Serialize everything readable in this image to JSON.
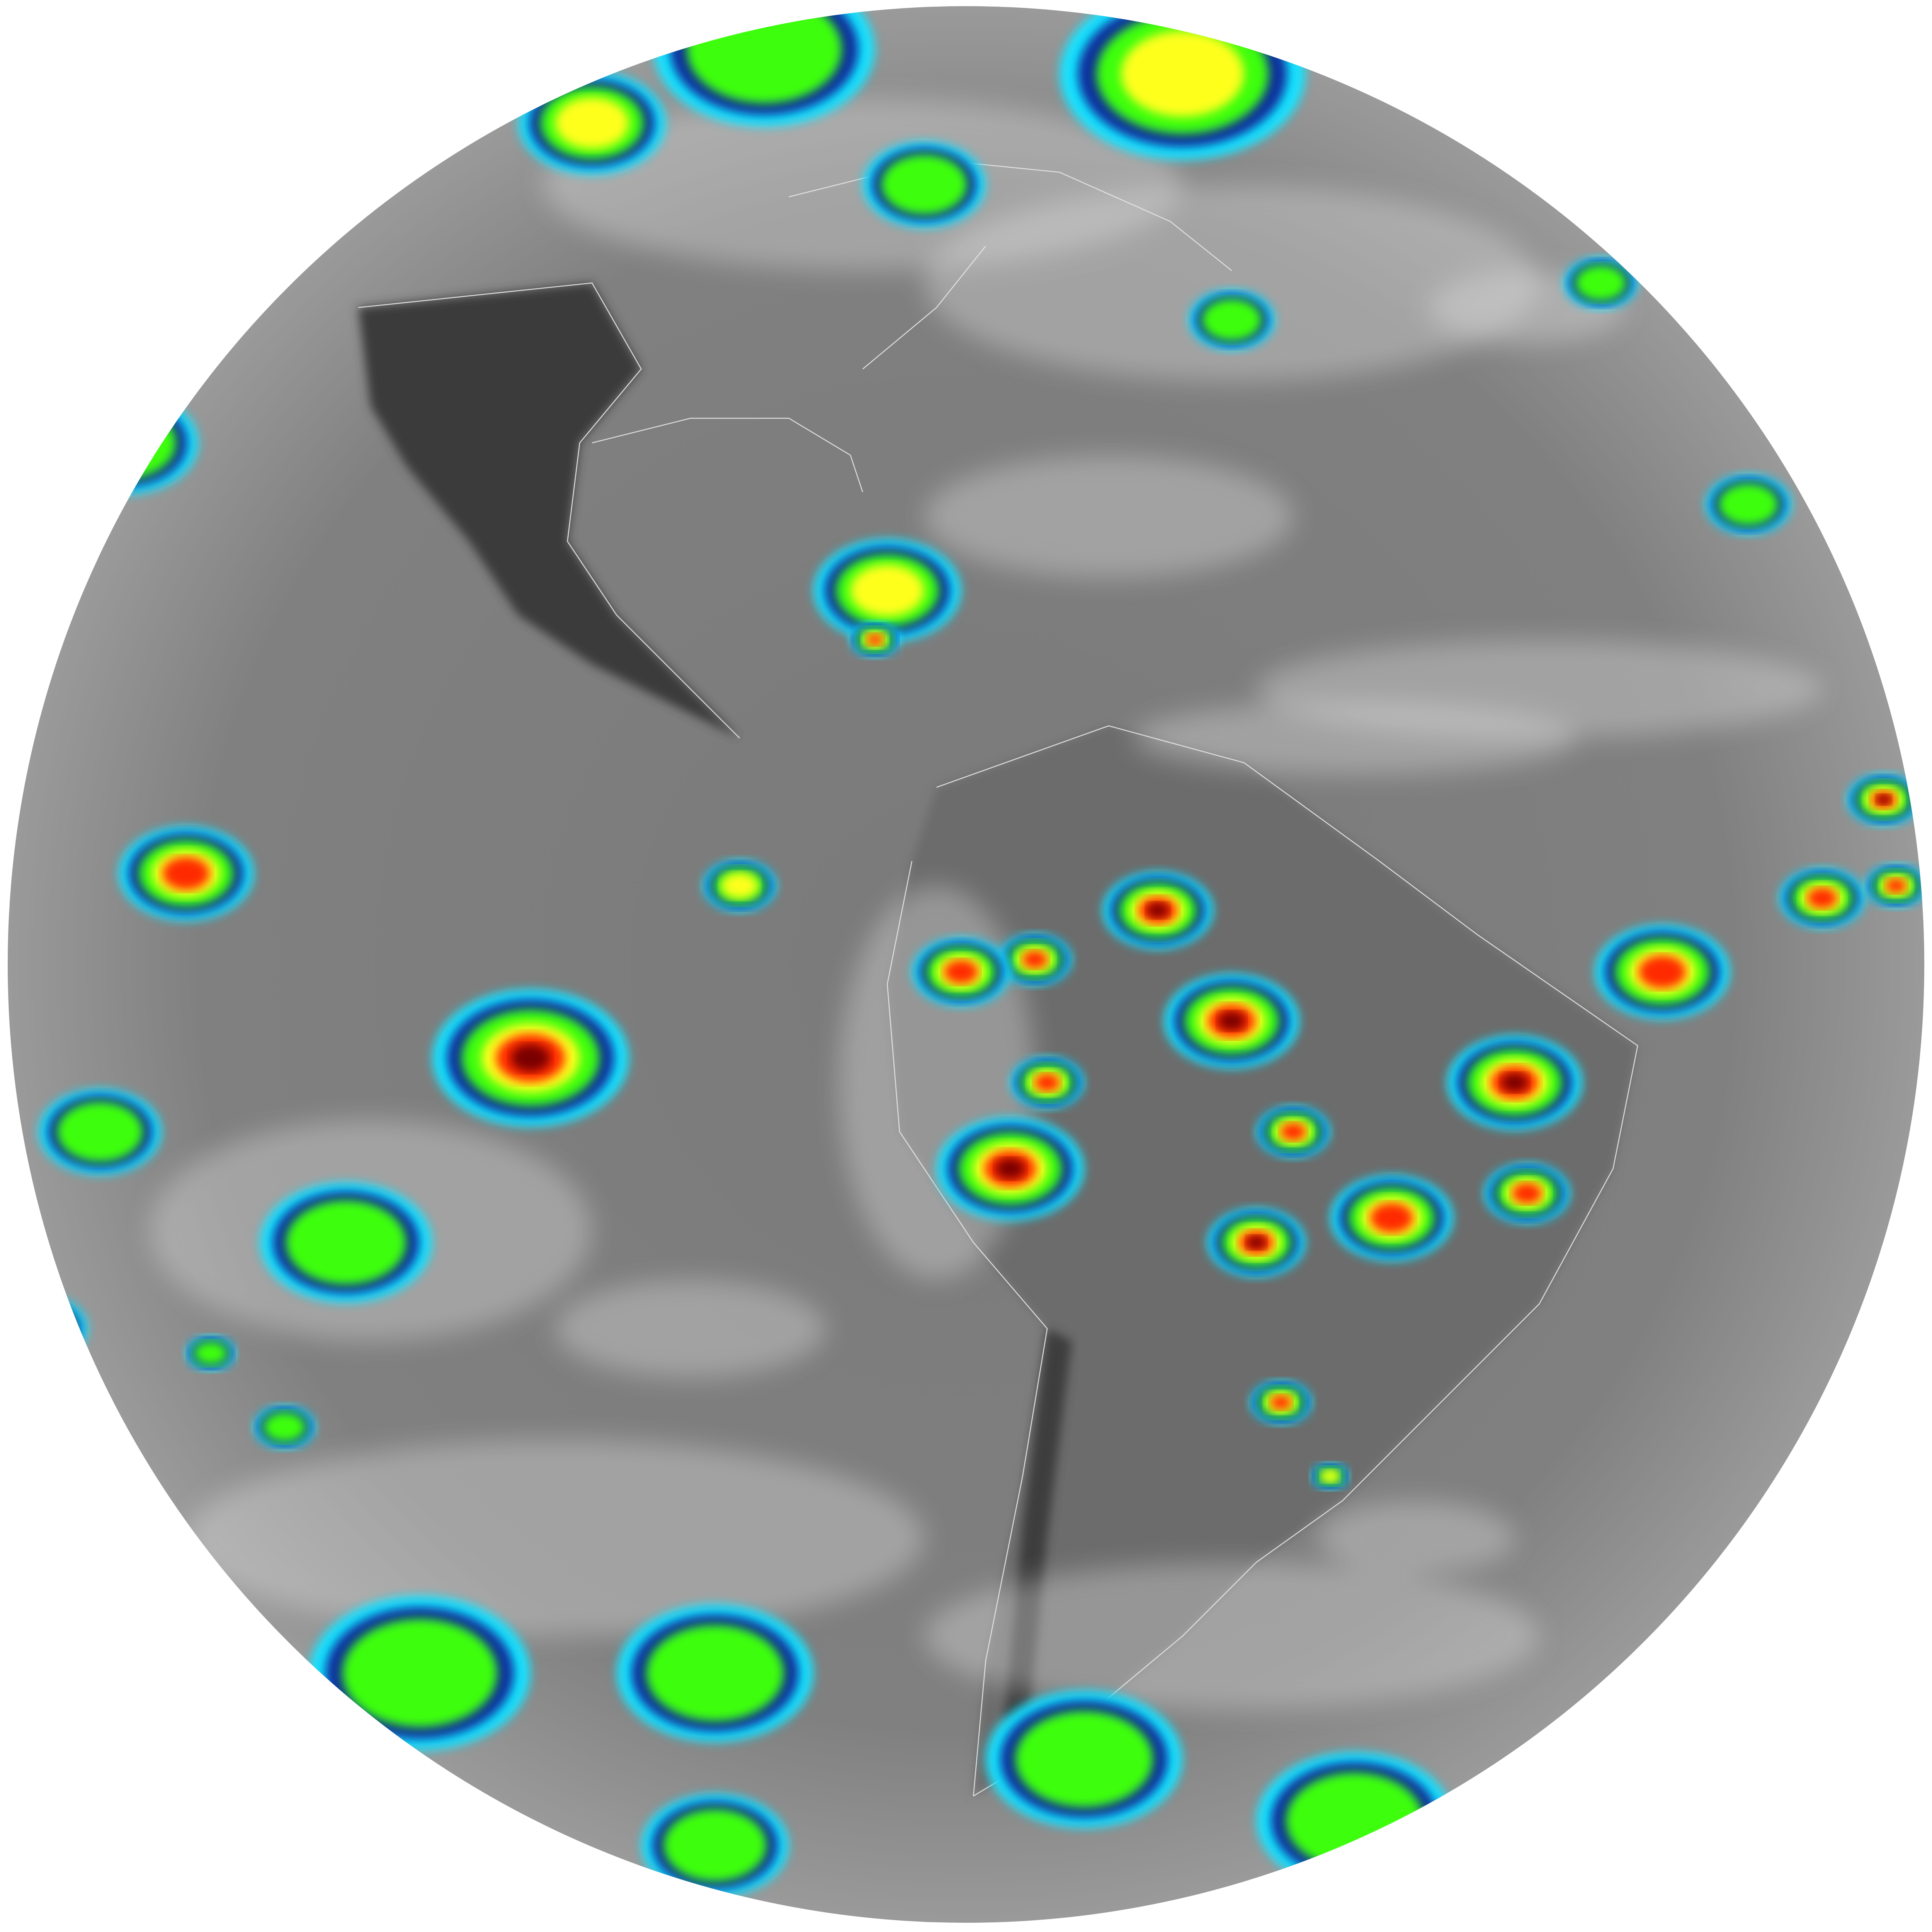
{
  "image": {
    "kind": "full-disk infrared satellite image",
    "background_color": "#ffffff",
    "palette": {
      "cold_gray": "#8a8a8a",
      "warm_land": "#2e2e2e",
      "cloud_white": "#e6e6e6",
      "cyan": "#19e3ff",
      "blue": "#0a2f9e",
      "green": "#3cff10",
      "yellow": "#ffff1a",
      "red": "#ff2a00",
      "dark_red": "#7a0000",
      "coastline": "#dcdcdc"
    }
  }
}
